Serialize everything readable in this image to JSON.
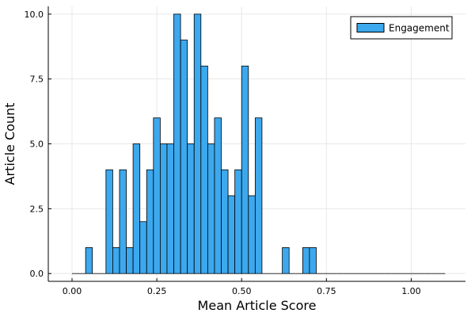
{
  "chart_data": {
    "type": "bar",
    "subtype": "histogram",
    "xlabel": "Mean Article Score",
    "ylabel": "Article Count",
    "xlim": [
      -0.07,
      1.16
    ],
    "ylim": [
      -0.3,
      10.3
    ],
    "xticks": [
      0.0,
      0.25,
      0.5,
      0.75,
      1.0
    ],
    "xtick_labels": [
      "0.00",
      "0.25",
      "0.50",
      "0.75",
      "1.00"
    ],
    "yticks": [
      0.0,
      2.5,
      5.0,
      7.5,
      10.0
    ],
    "ytick_labels": [
      "0.0",
      "2.5",
      "5.0",
      "7.5",
      "10.0"
    ],
    "grid": true,
    "legend_position": "top-right",
    "bin_start": 0.0,
    "bin_width": 0.02,
    "series": [
      {
        "name": "Engagement",
        "color": "#3ca8ee",
        "values": [
          0,
          0,
          1,
          0,
          0,
          4,
          1,
          4,
          1,
          5,
          2,
          4,
          6,
          5,
          5,
          10,
          9,
          5,
          10,
          8,
          5,
          6,
          4,
          3,
          4,
          8,
          3,
          6,
          0,
          0,
          0,
          1,
          0,
          0,
          1,
          1,
          0,
          0,
          0,
          0,
          0,
          0,
          0,
          0,
          0,
          0,
          0,
          0,
          0,
          0,
          0,
          0,
          0,
          0,
          0
        ]
      }
    ]
  }
}
